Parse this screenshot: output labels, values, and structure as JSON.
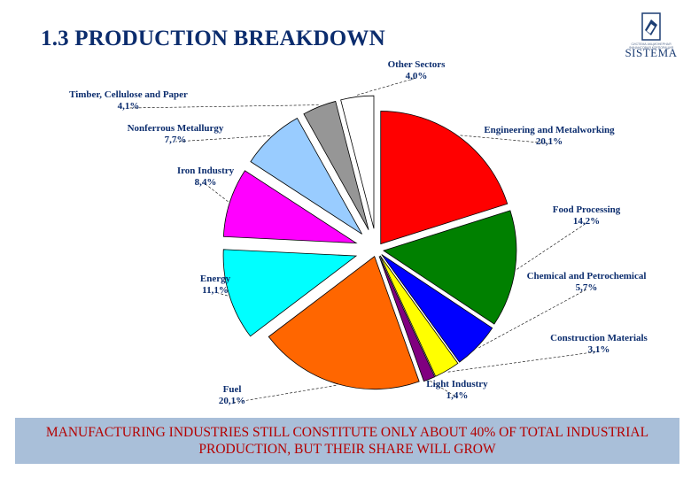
{
  "header": {
    "title": "1.3 PRODUCTION BREAKDOWN",
    "logo_subtitle": "СИСТЕМА АКЦИОНЕРНАЯ ФИНАНСОВАЯ КОРПОРАЦИЯ",
    "logo_name": "SISTEMA"
  },
  "chart_data": {
    "type": "pie",
    "exploded": true,
    "slices": [
      {
        "label": "Engineering and Metalworking",
        "value": 20.1,
        "display": "20,1%",
        "color": "#ff0000"
      },
      {
        "label": "Food Processing",
        "value": 14.2,
        "display": "14,2%",
        "color": "#008000"
      },
      {
        "label": "Chemical and Petrochemical",
        "value": 5.7,
        "display": "5,7%",
        "color": "#0000ff"
      },
      {
        "label": "Construction Materials",
        "value": 3.1,
        "display": "3,1%",
        "color": "#ffff00"
      },
      {
        "label": "Light Industry",
        "value": 1.4,
        "display": "1,4%",
        "color": "#800080"
      },
      {
        "label": "Fuel",
        "value": 20.1,
        "display": "20,1%",
        "color": "#ff6600"
      },
      {
        "label": "Energy",
        "value": 11.1,
        "display": "11,1%",
        "color": "#00ffff"
      },
      {
        "label": "Iron Industry",
        "value": 8.4,
        "display": "8,4%",
        "color": "#ff00ff"
      },
      {
        "label": "Nonferrous Metallurgy",
        "value": 7.7,
        "display": "7,7%",
        "color": "#99ccff"
      },
      {
        "label": "Timber, Cellulose and Paper",
        "value": 4.1,
        "display": "4,1%",
        "color": "#969696"
      },
      {
        "label": "Other Sectors",
        "value": 4.0,
        "display": "4,0%",
        "color": "#ffffff"
      }
    ]
  },
  "banner": {
    "text": "MANUFACTURING INDUSTRIES STILL CONSTITUTE ONLY ABOUT 40% OF TOTAL INDUSTRIAL PRODUCTION, BUT THEIR SHARE WILL GROW"
  }
}
